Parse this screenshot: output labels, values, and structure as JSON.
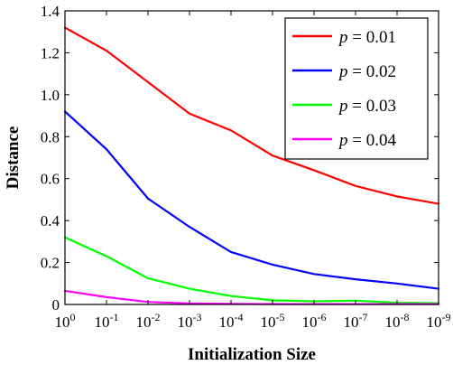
{
  "chart_data": {
    "type": "line",
    "title": "",
    "xlabel": "Initialization Size",
    "ylabel": "Distance",
    "x_tick_labels": [
      {
        "base": "10",
        "exp": "0"
      },
      {
        "base": "10",
        "exp": "-1"
      },
      {
        "base": "10",
        "exp": "-2"
      },
      {
        "base": "10",
        "exp": "-3"
      },
      {
        "base": "10",
        "exp": "-4"
      },
      {
        "base": "10",
        "exp": "-5"
      },
      {
        "base": "10",
        "exp": "-6"
      },
      {
        "base": "10",
        "exp": "-7"
      },
      {
        "base": "10",
        "exp": "-8"
      },
      {
        "base": "10",
        "exp": "-9"
      }
    ],
    "x": [
      "1e0",
      "1e-1",
      "1e-2",
      "1e-3",
      "1e-4",
      "1e-5",
      "1e-6",
      "1e-7",
      "1e-8",
      "1e-9"
    ],
    "x_scale": "log, decreasing left to right",
    "ylim": [
      0,
      1.4
    ],
    "y_ticks": [
      0,
      0.2,
      0.4,
      0.6,
      0.8,
      1.0,
      1.2,
      1.4
    ],
    "y_tick_labels": [
      "0",
      "0.2",
      "0.4",
      "0.6",
      "0.8",
      "1.0",
      "1.2",
      "1.4"
    ],
    "grid": false,
    "legend_position": "top-right",
    "series": [
      {
        "name": "p = 0.01",
        "legend_var": "p",
        "legend_value": "0.01",
        "color": "#ff0000",
        "values": [
          1.32,
          1.21,
          1.06,
          0.91,
          0.83,
          0.71,
          0.64,
          0.565,
          0.515,
          0.48
        ]
      },
      {
        "name": "p = 0.02",
        "legend_var": "p",
        "legend_value": "0.02",
        "color": "#0000ff",
        "values": [
          0.92,
          0.74,
          0.505,
          0.37,
          0.25,
          0.19,
          0.145,
          0.12,
          0.1,
          0.075
        ]
      },
      {
        "name": "p = 0.03",
        "legend_var": "p",
        "legend_value": "0.03",
        "color": "#00ff00",
        "values": [
          0.32,
          0.23,
          0.125,
          0.075,
          0.04,
          0.02,
          0.015,
          0.018,
          0.008,
          0.006
        ]
      },
      {
        "name": "p = 0.04",
        "legend_var": "p",
        "legend_value": "0.04",
        "color": "#ff00ff",
        "values": [
          0.065,
          0.035,
          0.012,
          0.005,
          0.003,
          0.002,
          0.002,
          0.002,
          0.002,
          0.002
        ]
      }
    ]
  }
}
